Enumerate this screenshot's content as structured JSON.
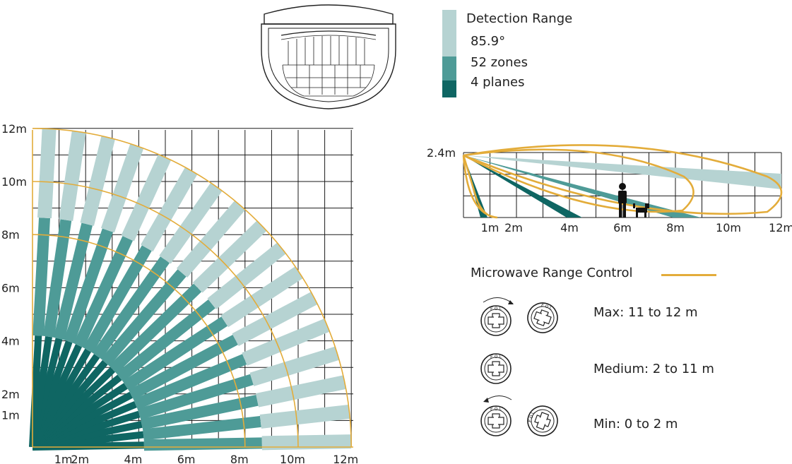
{
  "legend": {
    "title": "Detection Range",
    "angle": "85.9°",
    "zones": "52 zones",
    "planes": "4 planes",
    "colors": [
      "#b6d3d2",
      "#4e9b97",
      "#0f6663"
    ]
  },
  "top_view": {
    "x_ticks": [
      "1m",
      "2m",
      "4m",
      "6m",
      "8m",
      "10m",
      "12m"
    ],
    "y_ticks": [
      "12m",
      "10m",
      "8m",
      "6m",
      "4m",
      "2m",
      "1m"
    ]
  },
  "side_view": {
    "height_label": "2.4m",
    "x_ticks": [
      "1m",
      "2m",
      "4m",
      "6m",
      "8m",
      "10m",
      "12m"
    ]
  },
  "microwave": {
    "title": "Microwave Range Control",
    "line_color": "#e3ac3a",
    "modes": [
      {
        "label": "Max: 11 to 12 m"
      },
      {
        "label": "Medium: 2 to 11 m"
      },
      {
        "label": "Min: 0 to 2 m"
      }
    ]
  },
  "colors": {
    "light": "#b6d3d2",
    "mid": "#4e9b97",
    "dark": "#0f6663",
    "arc": "#e3ac3a",
    "grid": "#1a1a1a"
  }
}
